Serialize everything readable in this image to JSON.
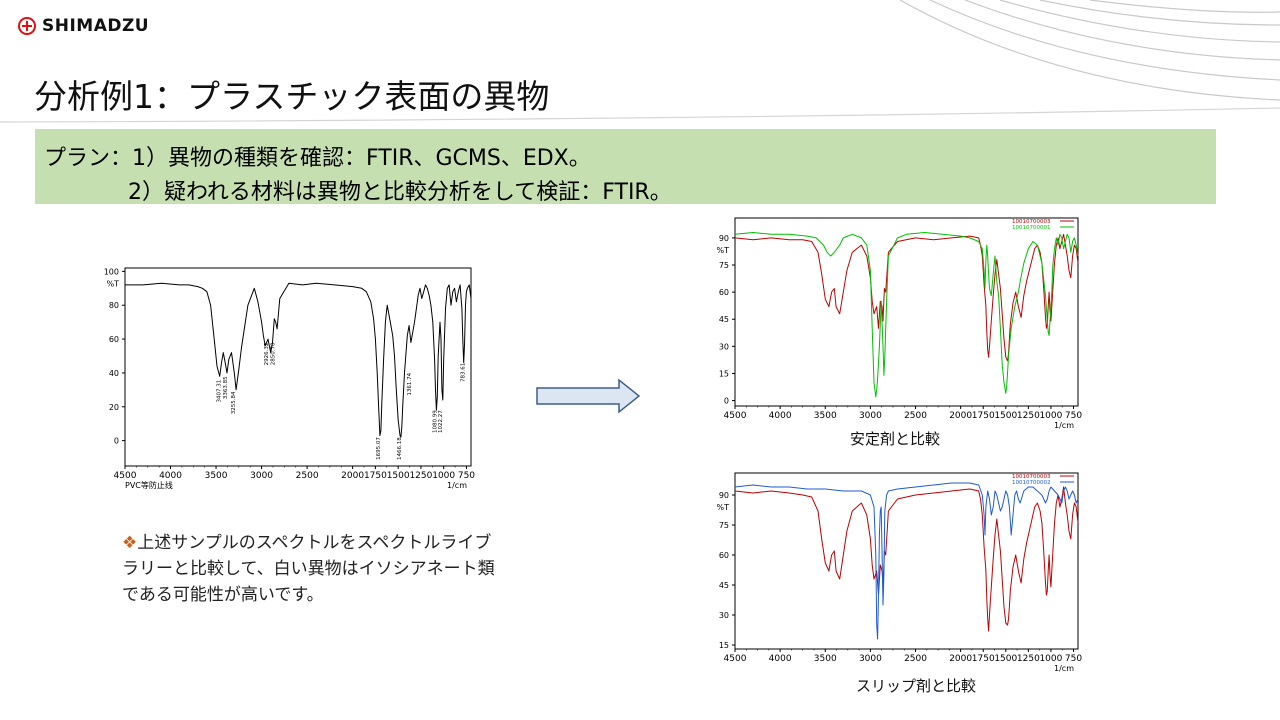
{
  "header": {
    "logo_text": "SHIMADZU",
    "title": "分析例1：プラスチック表面の異物"
  },
  "plan": {
    "line1": "プラン：1）異物の種類を確認：FTIR、GCMS、EDX。",
    "line2": "2）疑われる材料は異物と比較分析をして検証：FTIR。"
  },
  "note": {
    "bullet": "❖",
    "text": "上述サンプルのスペクトルをスペクトルライブラリーと比較して、白い異物はイソシアネート類である可能性が高いです。"
  },
  "captions": {
    "stabilizer": "安定剤と比較",
    "slip": "スリップ剤と比較"
  },
  "colors": {
    "plan_bg": "#c6dfb1",
    "sample": "#c00000",
    "stabilizer": "#00c000",
    "slip": "#1e5bd8",
    "arrow_fill": "#dce6f2",
    "arrow_stroke": "#3e5f8a"
  },
  "chart_data": [
    {
      "type": "line",
      "name": "sample_spectrum",
      "title": "",
      "xlabel": "1/cm",
      "ylabel": "%T",
      "footer": "PVC等防止线",
      "xlim": [
        4500,
        700
      ],
      "ylim": [
        -15,
        102
      ],
      "xticks": [
        4500,
        4000,
        3500,
        3000,
        2500,
        2000,
        1750,
        1500,
        1250,
        1000,
        750
      ],
      "yticks": [
        100,
        80,
        60,
        40,
        20,
        0
      ],
      "ytick_labels": [
        "100",
        "80",
        "60",
        "40",
        "20",
        "0"
      ],
      "peak_labels": [
        {
          "x": 3450,
          "y": 36,
          "text": "3407.31"
        },
        {
          "x": 3380,
          "y": 38,
          "text": "3363.85"
        },
        {
          "x": 3290,
          "y": 29,
          "text": "3255.84"
        },
        {
          "x": 2930,
          "y": 58,
          "text": "2926.32"
        },
        {
          "x": 2860,
          "y": 58,
          "text": "2850.70"
        },
        {
          "x": 1700,
          "y": 2,
          "text": "1695.07"
        },
        {
          "x": 1470,
          "y": 2,
          "text": "1466.18"
        },
        {
          "x": 1360,
          "y": 40,
          "text": "1361.74"
        },
        {
          "x": 1080,
          "y": 18,
          "text": "1080.99"
        },
        {
          "x": 1020,
          "y": 18,
          "text": "1022.27"
        },
        {
          "x": 770,
          "y": 46,
          "text": "783.61"
        }
      ],
      "series": [
        {
          "name": "",
          "color": "#000000",
          "x": [
            4500,
            4300,
            4100,
            3900,
            3800,
            3700,
            3650,
            3600,
            3560,
            3520,
            3490,
            3460,
            3440,
            3420,
            3400,
            3380,
            3360,
            3330,
            3300,
            3280,
            3250,
            3220,
            3150,
            3080,
            3040,
            3000,
            2980,
            2960,
            2930,
            2900,
            2880,
            2860,
            2845,
            2830,
            2800,
            2700,
            2550,
            2400,
            2200,
            2000,
            1900,
            1850,
            1800,
            1770,
            1750,
            1730,
            1710,
            1700,
            1690,
            1680,
            1660,
            1640,
            1620,
            1600,
            1580,
            1560,
            1540,
            1520,
            1500,
            1480,
            1470,
            1460,
            1450,
            1430,
            1400,
            1380,
            1360,
            1340,
            1320,
            1300,
            1280,
            1260,
            1240,
            1220,
            1200,
            1180,
            1160,
            1140,
            1120,
            1100,
            1090,
            1080,
            1070,
            1060,
            1040,
            1030,
            1020,
            1010,
            1000,
            980,
            960,
            940,
            920,
            900,
            880,
            860,
            840,
            820,
            800,
            790,
            780,
            770,
            760,
            750,
            740,
            720,
            700
          ],
          "y": [
            92,
            92,
            93,
            92,
            92,
            91,
            90,
            88,
            80,
            60,
            44,
            38,
            46,
            52,
            46,
            40,
            48,
            52,
            40,
            30,
            42,
            55,
            80,
            90,
            82,
            70,
            62,
            56,
            60,
            52,
            58,
            72,
            70,
            66,
            84,
            93,
            92,
            93,
            92,
            91,
            90,
            88,
            82,
            72,
            60,
            40,
            15,
            3,
            6,
            22,
            48,
            70,
            80,
            74,
            68,
            62,
            50,
            30,
            12,
            3,
            2,
            8,
            20,
            40,
            62,
            68,
            58,
            64,
            70,
            78,
            86,
            90,
            84,
            88,
            92,
            90,
            86,
            80,
            70,
            48,
            30,
            18,
            26,
            50,
            70,
            60,
            30,
            24,
            48,
            78,
            90,
            92,
            80,
            88,
            90,
            82,
            88,
            92,
            78,
            60,
            46,
            58,
            80,
            88,
            90,
            92,
            84
          ]
        }
      ]
    },
    {
      "type": "line",
      "name": "stabilizer_comparison",
      "title": "",
      "xlabel": "1/cm",
      "ylabel": "%T",
      "xlim": [
        4500,
        700
      ],
      "ylim": [
        -3,
        101
      ],
      "xticks": [
        4500,
        4000,
        3500,
        3000,
        2500,
        2000,
        1750,
        1500,
        1250,
        1000,
        750
      ],
      "yticks": [
        90,
        75,
        60,
        45,
        30,
        15,
        0
      ],
      "ytick_labels": [
        "90",
        "75",
        "60",
        "45",
        "30",
        "15",
        "0"
      ],
      "legend": [
        "10010700003",
        "10010700001"
      ],
      "series": [
        {
          "name": "10010700003",
          "color": "#c00000",
          "x": [
            4500,
            4300,
            4100,
            3900,
            3750,
            3650,
            3580,
            3540,
            3500,
            3460,
            3430,
            3400,
            3380,
            3340,
            3300,
            3260,
            3200,
            3100,
            3040,
            3000,
            2980,
            2960,
            2930,
            2910,
            2890,
            2870,
            2860,
            2845,
            2830,
            2800,
            2700,
            2500,
            2300,
            2100,
            1900,
            1800,
            1780,
            1760,
            1740,
            1720,
            1710,
            1700,
            1690,
            1680,
            1660,
            1640,
            1620,
            1600,
            1580,
            1560,
            1540,
            1520,
            1500,
            1480,
            1470,
            1460,
            1450,
            1420,
            1390,
            1360,
            1330,
            1300,
            1270,
            1240,
            1210,
            1180,
            1150,
            1120,
            1100,
            1080,
            1060,
            1050,
            1040,
            1030,
            1020,
            1010,
            1000,
            980,
            960,
            940,
            920,
            900,
            880,
            860,
            840,
            820,
            800,
            780,
            760,
            740,
            720,
            700
          ],
          "y": [
            90,
            89,
            90,
            89,
            89,
            88,
            82,
            70,
            56,
            52,
            60,
            62,
            52,
            48,
            60,
            72,
            82,
            86,
            80,
            68,
            55,
            48,
            52,
            40,
            55,
            52,
            44,
            62,
            60,
            82,
            88,
            90,
            89,
            90,
            91,
            90,
            86,
            80,
            64,
            52,
            38,
            28,
            24,
            30,
            44,
            58,
            70,
            78,
            70,
            62,
            48,
            34,
            24,
            22,
            26,
            34,
            42,
            54,
            60,
            52,
            46,
            58,
            66,
            72,
            78,
            84,
            86,
            82,
            76,
            62,
            46,
            40,
            42,
            52,
            60,
            50,
            44,
            60,
            76,
            86,
            90,
            84,
            88,
            92,
            86,
            80,
            72,
            68,
            80,
            86,
            84,
            76
          ]
        },
        {
          "name": "10010700001",
          "color": "#00c000",
          "x": [
            4500,
            4300,
            4100,
            3900,
            3700,
            3600,
            3520,
            3480,
            3440,
            3400,
            3340,
            3300,
            3200,
            3100,
            3040,
            3000,
            2980,
            2960,
            2940,
            2930,
            2920,
            2900,
            2880,
            2860,
            2850,
            2840,
            2820,
            2800,
            2700,
            2600,
            2400,
            2200,
            2000,
            1900,
            1800,
            1760,
            1740,
            1730,
            1720,
            1710,
            1700,
            1690,
            1680,
            1660,
            1640,
            1620,
            1600,
            1580,
            1560,
            1540,
            1520,
            1500,
            1490,
            1480,
            1470,
            1460,
            1440,
            1420,
            1400,
            1380,
            1360,
            1340,
            1300,
            1250,
            1200,
            1150,
            1100,
            1060,
            1040,
            1030,
            1020,
            1010,
            990,
            980,
            960,
            940,
            920,
            900,
            880,
            860,
            840,
            820,
            800,
            780,
            760,
            740,
            720,
            700
          ],
          "y": [
            92,
            93,
            92,
            92,
            91,
            90,
            86,
            82,
            80,
            82,
            86,
            90,
            92,
            90,
            86,
            72,
            40,
            10,
            2,
            6,
            12,
            30,
            55,
            30,
            14,
            24,
            55,
            80,
            90,
            92,
            93,
            92,
            91,
            90,
            88,
            84,
            72,
            62,
            78,
            86,
            80,
            70,
            62,
            58,
            70,
            80,
            66,
            58,
            40,
            20,
            10,
            4,
            8,
            16,
            24,
            30,
            40,
            46,
            52,
            56,
            60,
            66,
            76,
            84,
            88,
            86,
            76,
            58,
            44,
            38,
            36,
            44,
            60,
            74,
            84,
            90,
            86,
            92,
            90,
            84,
            88,
            92,
            90,
            82,
            88,
            90,
            86,
            80
          ]
        }
      ]
    },
    {
      "type": "line",
      "name": "slip_comparison",
      "title": "",
      "xlabel": "1/cm",
      "ylabel": "%T",
      "xlim": [
        4500,
        700
      ],
      "ylim": [
        13,
        101
      ],
      "xticks": [
        4500,
        4000,
        3500,
        3000,
        2500,
        2000,
        1750,
        1500,
        1250,
        1000,
        750
      ],
      "yticks": [
        90,
        75,
        60,
        45,
        30,
        15
      ],
      "ytick_labels": [
        "90",
        "75",
        "60",
        "45",
        "30",
        "15"
      ],
      "legend": [
        "10010700003",
        "10010700002"
      ],
      "series": [
        {
          "name": "10010700003",
          "color": "#c00000",
          "x": [
            4500,
            4300,
            4100,
            3900,
            3750,
            3650,
            3580,
            3540,
            3500,
            3460,
            3430,
            3400,
            3380,
            3340,
            3300,
            3260,
            3200,
            3100,
            3040,
            3000,
            2980,
            2960,
            2930,
            2910,
            2890,
            2870,
            2860,
            2845,
            2830,
            2800,
            2700,
            2500,
            2300,
            2100,
            1900,
            1800,
            1780,
            1760,
            1740,
            1720,
            1710,
            1700,
            1690,
            1680,
            1660,
            1640,
            1620,
            1600,
            1580,
            1560,
            1540,
            1520,
            1500,
            1480,
            1470,
            1460,
            1450,
            1420,
            1390,
            1360,
            1330,
            1300,
            1270,
            1240,
            1210,
            1180,
            1150,
            1120,
            1100,
            1080,
            1060,
            1050,
            1040,
            1030,
            1020,
            1010,
            1000,
            980,
            960,
            940,
            920,
            900,
            880,
            860,
            840,
            820,
            800,
            780,
            760,
            740,
            720,
            700
          ],
          "y": [
            92,
            91,
            92,
            91,
            90,
            89,
            82,
            68,
            56,
            52,
            60,
            62,
            52,
            48,
            60,
            72,
            82,
            86,
            80,
            68,
            55,
            48,
            52,
            40,
            55,
            52,
            44,
            62,
            60,
            82,
            88,
            90,
            91,
            92,
            93,
            92,
            88,
            80,
            64,
            52,
            38,
            28,
            22,
            30,
            44,
            58,
            70,
            78,
            70,
            62,
            48,
            34,
            26,
            25,
            28,
            34,
            42,
            54,
            60,
            52,
            46,
            58,
            66,
            72,
            78,
            84,
            86,
            82,
            76,
            62,
            46,
            40,
            42,
            52,
            60,
            50,
            44,
            60,
            76,
            86,
            90,
            84,
            88,
            94,
            86,
            80,
            72,
            68,
            80,
            86,
            84,
            76
          ]
        },
        {
          "name": "10010700002",
          "color": "#1e5bd8",
          "x": [
            4500,
            4300,
            4100,
            3900,
            3700,
            3500,
            3300,
            3100,
            3000,
            2960,
            2940,
            2930,
            2920,
            2910,
            2900,
            2890,
            2880,
            2870,
            2860,
            2850,
            2840,
            2820,
            2800,
            2700,
            2500,
            2300,
            2100,
            1900,
            1800,
            1760,
            1740,
            1730,
            1720,
            1700,
            1680,
            1660,
            1640,
            1620,
            1600,
            1580,
            1560,
            1540,
            1520,
            1500,
            1480,
            1460,
            1440,
            1420,
            1400,
            1380,
            1360,
            1340,
            1300,
            1250,
            1200,
            1150,
            1100,
            1060,
            1040,
            1020,
            1000,
            960,
            920,
            880,
            860,
            840,
            820,
            800,
            780,
            760,
            740,
            720,
            700
          ],
          "y": [
            94,
            95,
            94,
            94,
            93,
            93,
            92,
            92,
            90,
            84,
            60,
            25,
            18,
            40,
            70,
            82,
            84,
            60,
            35,
            50,
            82,
            90,
            92,
            93,
            94,
            95,
            96,
            96,
            95,
            90,
            80,
            70,
            84,
            92,
            88,
            80,
            84,
            92,
            90,
            86,
            82,
            84,
            88,
            92,
            90,
            84,
            70,
            80,
            90,
            92,
            88,
            86,
            92,
            94,
            94,
            92,
            90,
            86,
            88,
            92,
            94,
            92,
            90,
            86,
            92,
            94,
            92,
            88,
            90,
            92,
            90,
            86,
            88
          ]
        }
      ]
    }
  ]
}
